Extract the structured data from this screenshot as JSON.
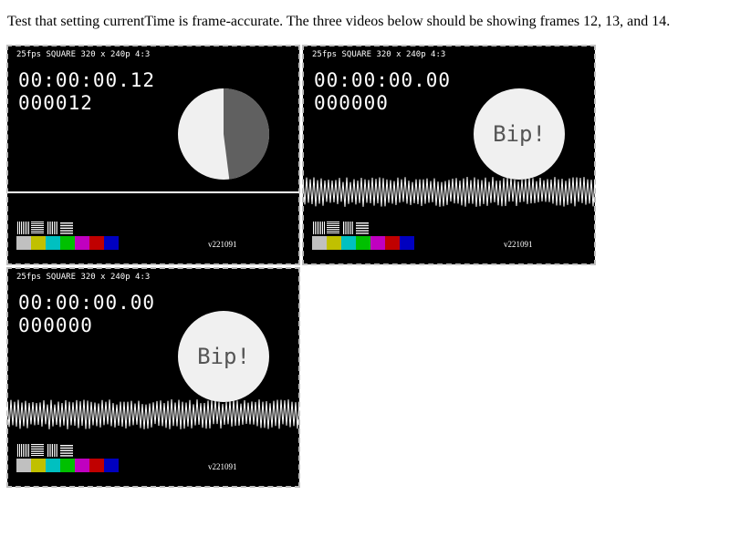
{
  "page": {
    "description": "Test that setting currentTime is frame-accurate. The three videos below should be showing frames 12, 13, and 14."
  },
  "videos": [
    {
      "header": "25fps SQUARE 320 x 240p 4:3",
      "timecode": "00:00:00.12",
      "frame_count": "000012",
      "circle_mode": "pie",
      "pie_dark_fraction": 0.48,
      "show_bip": false,
      "bip_text": "",
      "show_waveform": false,
      "version": "v221091"
    },
    {
      "header": "25fps SQUARE 320 x 240p 4:3",
      "timecode": "00:00:00.00",
      "frame_count": "000000",
      "circle_mode": "bip",
      "pie_dark_fraction": 0,
      "show_bip": true,
      "bip_text": "Bip!",
      "show_waveform": true,
      "version": "v221091"
    },
    {
      "header": "25fps SQUARE 320 x 240p 4:3",
      "timecode": "00:00:00.00",
      "frame_count": "000000",
      "circle_mode": "bip",
      "pie_dark_fraction": 0,
      "show_bip": true,
      "bip_text": "Bip!",
      "show_waveform": true,
      "version": "v221091"
    }
  ],
  "colors": {
    "color_bars": [
      "#c0c0c0",
      "#c0c000",
      "#00c0c0",
      "#00c000",
      "#c000c0",
      "#c00000",
      "#0000c0"
    ],
    "circle_light": "#f0f0f0",
    "circle_dark": "#606060",
    "video_border": "#bdbdbd"
  }
}
